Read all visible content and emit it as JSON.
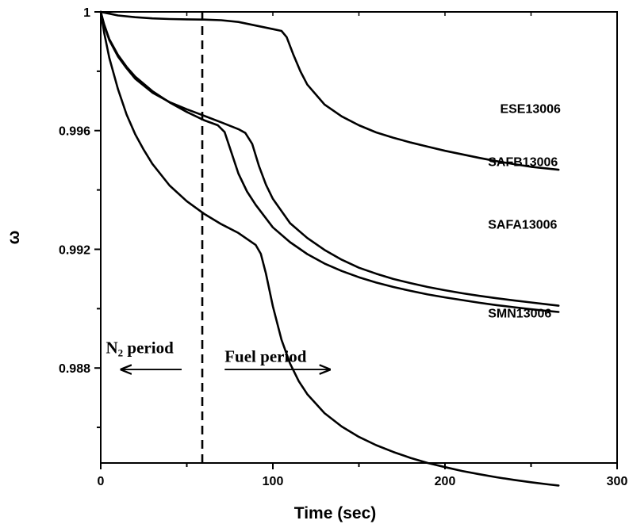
{
  "chart_data": {
    "type": "line",
    "xlabel": "Time (sec)",
    "ylabel": "ω",
    "xlim": [
      0,
      300
    ],
    "ylim": [
      0.9848,
      1.0
    ],
    "x_ticks": [
      0,
      100,
      200,
      300
    ],
    "x_tick_labels": [
      "0",
      "100",
      "200",
      "300"
    ],
    "x_minor_ticks": [
      50,
      150,
      250
    ],
    "y_ticks": [
      0.988,
      0.992,
      0.996,
      1.0
    ],
    "y_tick_labels": [
      "0.988",
      "0.992",
      "0.996",
      "1"
    ],
    "y_minor_ticks": [
      0.986,
      0.99,
      0.994,
      0.998
    ],
    "grid": false,
    "legend": "none",
    "series": [
      {
        "name": "ESE13006",
        "label_at": [
          232,
          0.9966
        ],
        "x": [
          0,
          5,
          10,
          20,
          30,
          40,
          50,
          60,
          70,
          80,
          90,
          100,
          105,
          108,
          112,
          116,
          120,
          130,
          140,
          150,
          160,
          170,
          180,
          190,
          200,
          210,
          220,
          230,
          240,
          250,
          260,
          266
        ],
        "y": [
          1.0,
          0.99994,
          0.99988,
          0.99982,
          0.99978,
          0.99976,
          0.99975,
          0.99974,
          0.99972,
          0.99966,
          0.99954,
          0.99942,
          0.99936,
          0.99915,
          0.99855,
          0.998,
          0.99755,
          0.99688,
          0.99648,
          0.99618,
          0.99594,
          0.99576,
          0.9956,
          0.99546,
          0.99532,
          0.9952,
          0.99508,
          0.99497,
          0.99487,
          0.99478,
          0.99472,
          0.99468
        ]
      },
      {
        "name": "SAFB13006",
        "label_at": [
          225,
          0.9948
        ],
        "x": [
          0,
          2,
          5,
          10,
          15,
          20,
          30,
          40,
          50,
          60,
          70,
          80,
          84,
          88,
          92,
          96,
          100,
          110,
          120,
          130,
          140,
          150,
          160,
          170,
          180,
          190,
          200,
          210,
          220,
          230,
          240,
          250,
          260,
          266
        ],
        "y": [
          1.0,
          0.99955,
          0.99905,
          0.9985,
          0.9981,
          0.99775,
          0.99728,
          0.99696,
          0.99672,
          0.9965,
          0.99628,
          0.99605,
          0.99592,
          0.99555,
          0.9948,
          0.99418,
          0.9937,
          0.99288,
          0.99238,
          0.99198,
          0.99165,
          0.99138,
          0.99118,
          0.991,
          0.99086,
          0.99073,
          0.99062,
          0.99052,
          0.99043,
          0.99035,
          0.99028,
          0.99021,
          0.99014,
          0.9901
        ]
      },
      {
        "name": "SAFA13006",
        "label_at": [
          225,
          0.9927
        ],
        "x": [
          0,
          2,
          5,
          10,
          15,
          20,
          30,
          40,
          50,
          60,
          68,
          72,
          76,
          80,
          85,
          90,
          100,
          110,
          120,
          130,
          140,
          150,
          160,
          170,
          180,
          190,
          200,
          210,
          220,
          230,
          240,
          250,
          260,
          266
        ],
        "y": [
          1.0,
          0.99958,
          0.99908,
          0.99855,
          0.99815,
          0.99782,
          0.99733,
          0.99695,
          0.99663,
          0.99635,
          0.99618,
          0.99595,
          0.99525,
          0.99455,
          0.99395,
          0.9935,
          0.99274,
          0.99224,
          0.99184,
          0.99152,
          0.99127,
          0.99106,
          0.99088,
          0.99073,
          0.9906,
          0.99048,
          0.99038,
          0.99029,
          0.9902,
          0.99012,
          0.99005,
          0.98998,
          0.98992,
          0.98989
        ]
      },
      {
        "name": "SMN13006",
        "label_at": [
          225,
          0.9897
        ],
        "x": [
          0,
          2,
          5,
          10,
          15,
          20,
          25,
          30,
          40,
          50,
          60,
          70,
          80,
          90,
          93,
          96,
          100,
          105,
          110,
          115,
          120,
          130,
          140,
          150,
          160,
          170,
          180,
          190,
          200,
          210,
          220,
          230,
          240,
          250,
          260,
          266
        ],
        "y": [
          1.0,
          0.9993,
          0.99845,
          0.9974,
          0.99654,
          0.99588,
          0.99535,
          0.99488,
          0.99415,
          0.99362,
          0.9932,
          0.99285,
          0.99255,
          0.99215,
          0.99185,
          0.99118,
          0.99008,
          0.98895,
          0.98815,
          0.98756,
          0.98712,
          0.98648,
          0.98603,
          0.98568,
          0.9854,
          0.98517,
          0.98497,
          0.9848,
          0.98466,
          0.98453,
          0.98442,
          0.98432,
          0.98423,
          0.98415,
          0.98408,
          0.98404
        ]
      }
    ],
    "vline": {
      "x": 59,
      "style": "dashed"
    },
    "annotations": [
      {
        "text_main": "N",
        "text_sub": "2",
        "text_rest": " period",
        "at": [
          3,
          0.9885
        ],
        "arrow_from": 47,
        "arrow_to": 12,
        "arrow_y": 0.98795
      },
      {
        "text": "Fuel period",
        "at": [
          72,
          0.9882
        ],
        "arrow_from": 72,
        "arrow_to": 133,
        "arrow_y": 0.98795
      }
    ]
  }
}
